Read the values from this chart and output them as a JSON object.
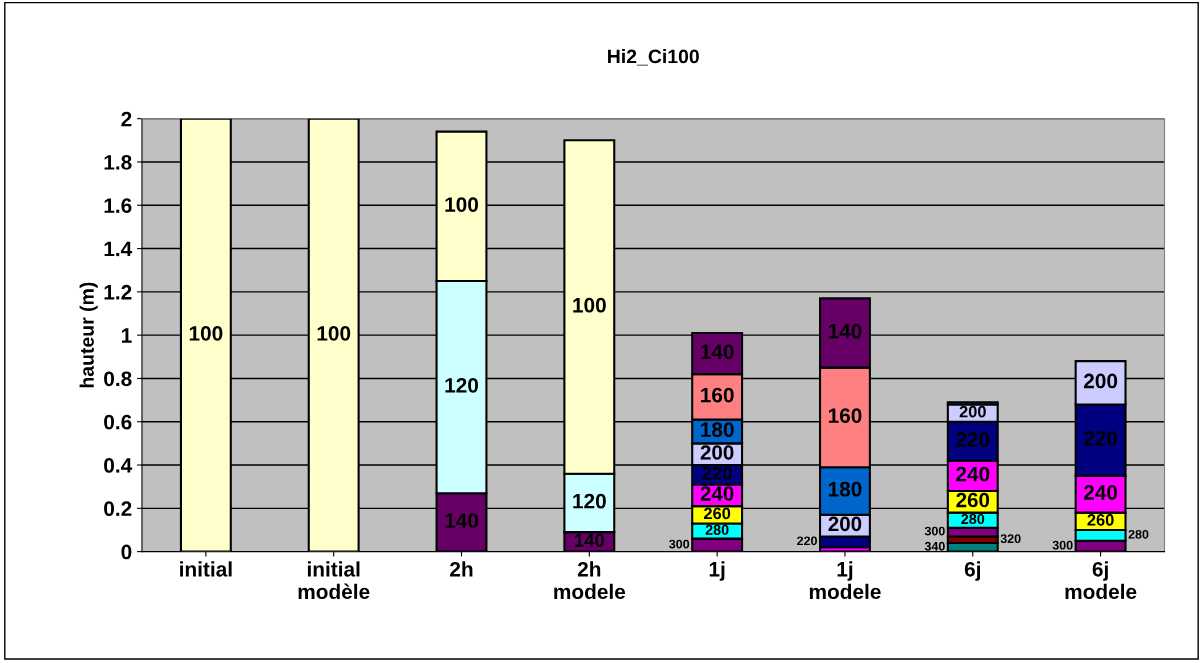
{
  "chart_data": {
    "type": "bar",
    "stacked": true,
    "title": "Hi2_Ci100",
    "ylabel": "hauteur (m)",
    "categories": [
      "initial",
      "initial\nmodèle",
      "2h",
      "2h\nmodele",
      "1j",
      "1j\nmodele",
      "6j",
      "6j\nmodele"
    ],
    "ylim": [
      0,
      2
    ],
    "yticks": [
      0,
      0.2,
      0.4,
      0.6,
      0.8,
      1,
      1.2,
      1.4,
      1.6,
      1.8,
      2
    ],
    "grid": "y",
    "series": [
      {
        "name": "340",
        "color": "#008080",
        "values": [
          0,
          0,
          0,
          0,
          0,
          0,
          0.04,
          0
        ]
      },
      {
        "name": "320",
        "color": "#800000",
        "values": [
          0,
          0,
          0,
          0,
          null,
          0,
          0.03,
          0
        ]
      },
      {
        "name": "300",
        "color": "#800080",
        "values": [
          0,
          0,
          0,
          0,
          0.06,
          0,
          0.04,
          0.05
        ]
      },
      {
        "name": "280",
        "color": "#00ffff",
        "values": [
          0,
          0,
          0,
          0,
          0.07,
          0,
          0.07,
          0.05
        ]
      },
      {
        "name": "260",
        "color": "#ffff00",
        "values": [
          0,
          0,
          0,
          0,
          0.08,
          null,
          0.1,
          0.08
        ]
      },
      {
        "name": "240",
        "color": "#ff00ff",
        "values": [
          0,
          0,
          0,
          0,
          0.1,
          0.02,
          0.14,
          0.17
        ]
      },
      {
        "name": "220",
        "color": "#000080",
        "values": [
          0,
          0,
          0,
          0,
          0.09,
          0.05,
          0.18,
          0.33
        ]
      },
      {
        "name": "200",
        "color": "#ccccff",
        "values": [
          0,
          0,
          0,
          0,
          0.1,
          0.1,
          0.08,
          0.2
        ]
      },
      {
        "name": "180",
        "color": "#0066cc",
        "values": [
          0,
          0,
          0,
          0,
          0.11,
          0.22,
          0.01,
          0
        ]
      },
      {
        "name": "160",
        "color": "#ff8080",
        "values": [
          0,
          0,
          0,
          0,
          0.21,
          0.46,
          0,
          0
        ]
      },
      {
        "name": "140",
        "color": "#660066",
        "values": [
          0,
          0,
          0.27,
          0.09,
          0.19,
          0.32,
          0,
          0
        ]
      },
      {
        "name": "120",
        "color": "#ccffff",
        "values": [
          0,
          0,
          0.98,
          0.27,
          0,
          0,
          0,
          0
        ]
      },
      {
        "name": "100",
        "color": "#ffffcc",
        "values": [
          2.0,
          2.0,
          0.69,
          1.54,
          0,
          0,
          0,
          0
        ]
      }
    ]
  }
}
